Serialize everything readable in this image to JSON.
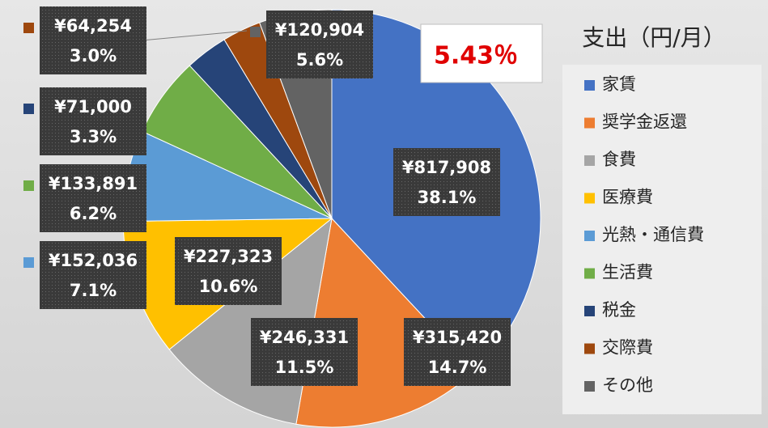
{
  "chart_data": {
    "type": "pie",
    "title": "支出（円/月）",
    "annotation": "5.43％",
    "categories": [
      "家賃",
      "奨学金返還",
      "食費",
      "医療費",
      "光熱・通信費",
      "生活費",
      "税金",
      "交際費",
      "その他"
    ],
    "values": [
      817908,
      315420,
      246331,
      227323,
      152036,
      133891,
      71000,
      64254,
      120904
    ],
    "value_labels": [
      "¥817,908",
      "¥315,420",
      "¥246,331",
      "¥227,323",
      "¥152,036",
      "¥133,891",
      "¥71,000",
      "¥64,254",
      "¥120,904"
    ],
    "percent_labels": [
      "38.1%",
      "14.7%",
      "11.5%",
      "10.6%",
      "7.1%",
      "6.2%",
      "3.3%",
      "3.0%",
      "5.6%"
    ],
    "colors": [
      "#4472c4",
      "#ed7d31",
      "#a5a5a5",
      "#ffc000",
      "#5b9bd5",
      "#70ad47",
      "#264478",
      "#9e480e",
      "#636363"
    ],
    "legend": "right"
  }
}
